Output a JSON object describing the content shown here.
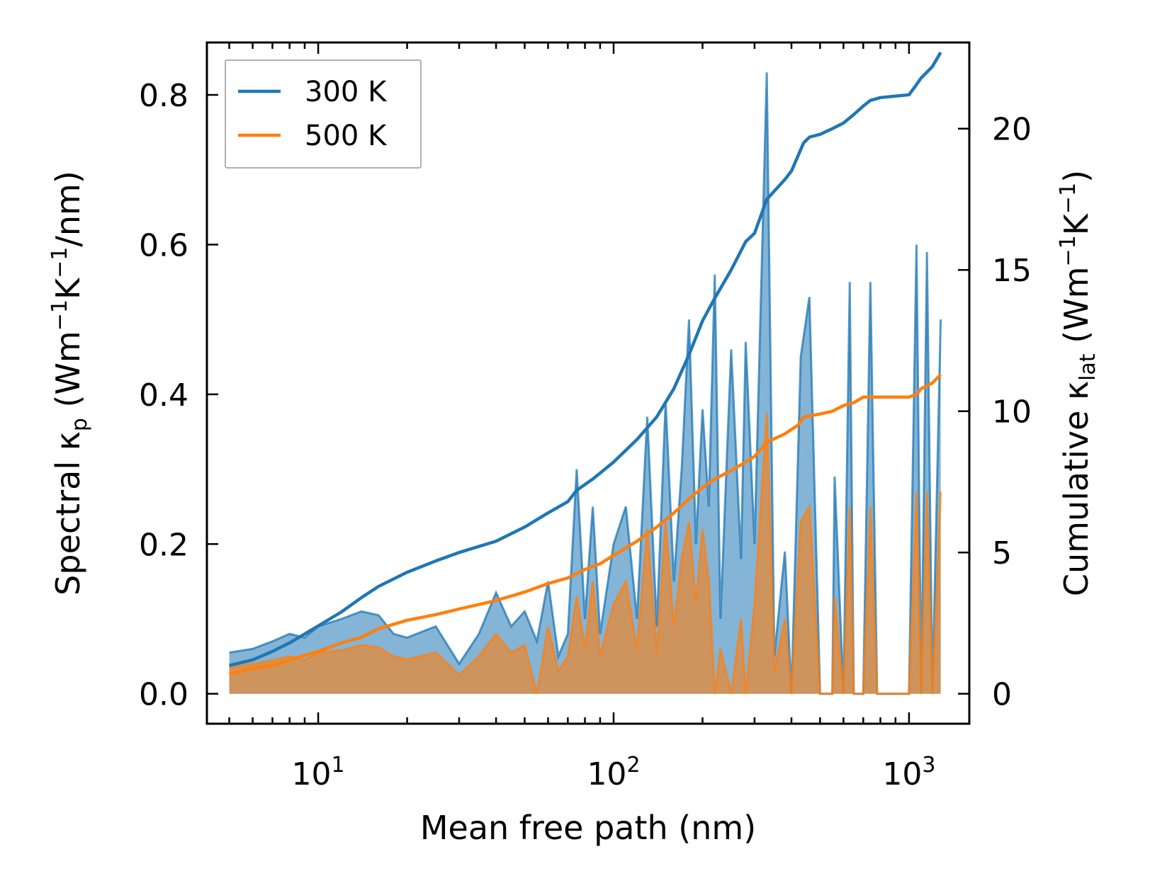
{
  "chart_data": {
    "type": "line",
    "xscale": "log",
    "xlabel": "Mean free path (nm)",
    "ylabel": "Spectral κ_p (Wm⁻¹K⁻¹/nm)",
    "y2label": "Cumulative κ_lat (Wm⁻¹K⁻¹)",
    "xlim": [
      4.2,
      1600
    ],
    "ylim": [
      -0.04,
      0.87
    ],
    "y2lim": [
      -1.06,
      23.05
    ],
    "x_ticks": [
      {
        "value": 10,
        "base": "10",
        "exp": "1"
      },
      {
        "value": 100,
        "base": "10",
        "exp": "2"
      },
      {
        "value": 1000,
        "base": "10",
        "exp": "3"
      }
    ],
    "y_ticks": [
      {
        "value": 0.0,
        "label": "0.0"
      },
      {
        "value": 0.2,
        "label": "0.2"
      },
      {
        "value": 0.4,
        "label": "0.4"
      },
      {
        "value": 0.6,
        "label": "0.6"
      },
      {
        "value": 0.8,
        "label": "0.8"
      }
    ],
    "y2_ticks": [
      {
        "value": 0,
        "label": "0"
      },
      {
        "value": 5,
        "label": "5"
      },
      {
        "value": 10,
        "label": "10"
      },
      {
        "value": 15,
        "label": "15"
      },
      {
        "value": 20,
        "label": "20"
      }
    ],
    "legend": {
      "position": "top-left",
      "entries": [
        "300 K",
        "500 K"
      ]
    },
    "colors": {
      "300 K": "#1f77b4",
      "500 K": "#ff7f0e"
    },
    "series": [
      {
        "name": "300 K",
        "color": "#1f77b4",
        "spectral": [
          [
            5,
            0.055
          ],
          [
            6,
            0.06
          ],
          [
            7,
            0.07
          ],
          [
            8,
            0.08
          ],
          [
            9,
            0.075
          ],
          [
            10,
            0.09
          ],
          [
            12,
            0.1
          ],
          [
            14,
            0.11
          ],
          [
            16,
            0.105
          ],
          [
            18,
            0.08
          ],
          [
            20,
            0.075
          ],
          [
            25,
            0.09
          ],
          [
            30,
            0.04
          ],
          [
            35,
            0.08
          ],
          [
            40,
            0.135
          ],
          [
            45,
            0.09
          ],
          [
            50,
            0.11
          ],
          [
            55,
            0.07
          ],
          [
            60,
            0.15
          ],
          [
            65,
            0.05
          ],
          [
            70,
            0.08
          ],
          [
            75,
            0.3
          ],
          [
            80,
            0.1
          ],
          [
            85,
            0.25
          ],
          [
            90,
            0.08
          ],
          [
            100,
            0.2
          ],
          [
            110,
            0.25
          ],
          [
            120,
            0.1
          ],
          [
            130,
            0.37
          ],
          [
            140,
            0.09
          ],
          [
            150,
            0.39
          ],
          [
            160,
            0.15
          ],
          [
            170,
            0.3
          ],
          [
            180,
            0.5
          ],
          [
            190,
            0.2
          ],
          [
            200,
            0.38
          ],
          [
            210,
            0.25
          ],
          [
            220,
            0.56
          ],
          [
            230,
            0.1
          ],
          [
            250,
            0.46
          ],
          [
            270,
            0.18
          ],
          [
            280,
            0.47
          ],
          [
            300,
            0.2
          ],
          [
            330,
            0.83
          ],
          [
            350,
            0.05
          ],
          [
            380,
            0.19
          ],
          [
            400,
            0.0
          ],
          [
            430,
            0.45
          ],
          [
            460,
            0.53
          ],
          [
            500,
            0.0
          ],
          [
            550,
            0.0
          ],
          [
            560,
            0.29
          ],
          [
            600,
            0.0
          ],
          [
            630,
            0.55
          ],
          [
            650,
            0.0
          ],
          [
            700,
            0.0
          ],
          [
            740,
            0.55
          ],
          [
            780,
            0.0
          ],
          [
            1000,
            0.0
          ],
          [
            1060,
            0.6
          ],
          [
            1100,
            0.0
          ],
          [
            1150,
            0.59
          ],
          [
            1200,
            0.0
          ],
          [
            1280,
            0.5
          ]
        ],
        "cumulative": [
          [
            5,
            1.0
          ],
          [
            6,
            1.2
          ],
          [
            7,
            1.5
          ],
          [
            8,
            1.8
          ],
          [
            10,
            2.4
          ],
          [
            12,
            2.9
          ],
          [
            14,
            3.4
          ],
          [
            16,
            3.8
          ],
          [
            20,
            4.3
          ],
          [
            25,
            4.7
          ],
          [
            30,
            5.0
          ],
          [
            40,
            5.4
          ],
          [
            50,
            5.9
          ],
          [
            60,
            6.4
          ],
          [
            70,
            6.8
          ],
          [
            75,
            7.2
          ],
          [
            85,
            7.6
          ],
          [
            100,
            8.2
          ],
          [
            120,
            9.0
          ],
          [
            140,
            9.8
          ],
          [
            160,
            10.8
          ],
          [
            180,
            12.0
          ],
          [
            200,
            13.2
          ],
          [
            220,
            14.0
          ],
          [
            250,
            15.0
          ],
          [
            280,
            16.0
          ],
          [
            300,
            16.3
          ],
          [
            330,
            17.5
          ],
          [
            380,
            18.2
          ],
          [
            400,
            18.5
          ],
          [
            440,
            19.5
          ],
          [
            460,
            19.7
          ],
          [
            500,
            19.8
          ],
          [
            550,
            20.0
          ],
          [
            600,
            20.2
          ],
          [
            650,
            20.5
          ],
          [
            700,
            20.8
          ],
          [
            740,
            21.0
          ],
          [
            800,
            21.1
          ],
          [
            1000,
            21.2
          ],
          [
            1050,
            21.5
          ],
          [
            1100,
            21.8
          ],
          [
            1150,
            22.0
          ],
          [
            1200,
            22.2
          ],
          [
            1280,
            22.7
          ]
        ]
      },
      {
        "name": "500 K",
        "color": "#ff7f0e",
        "spectral": [
          [
            5,
            0.035
          ],
          [
            6,
            0.04
          ],
          [
            7,
            0.045
          ],
          [
            8,
            0.05
          ],
          [
            9,
            0.045
          ],
          [
            10,
            0.055
          ],
          [
            12,
            0.058
          ],
          [
            14,
            0.065
          ],
          [
            16,
            0.062
          ],
          [
            18,
            0.05
          ],
          [
            20,
            0.046
          ],
          [
            25,
            0.055
          ],
          [
            30,
            0.025
          ],
          [
            35,
            0.05
          ],
          [
            40,
            0.08
          ],
          [
            45,
            0.055
          ],
          [
            50,
            0.065
          ],
          [
            55,
            0.0
          ],
          [
            60,
            0.09
          ],
          [
            65,
            0.03
          ],
          [
            70,
            0.05
          ],
          [
            75,
            0.13
          ],
          [
            80,
            0.06
          ],
          [
            85,
            0.15
          ],
          [
            90,
            0.05
          ],
          [
            100,
            0.12
          ],
          [
            110,
            0.15
          ],
          [
            120,
            0.06
          ],
          [
            130,
            0.22
          ],
          [
            140,
            0.055
          ],
          [
            150,
            0.23
          ],
          [
            160,
            0.09
          ],
          [
            170,
            0.18
          ],
          [
            180,
            0.23
          ],
          [
            190,
            0.12
          ],
          [
            200,
            0.22
          ],
          [
            210,
            0.15
          ],
          [
            220,
            0.0
          ],
          [
            230,
            0.06
          ],
          [
            250,
            0.0
          ],
          [
            270,
            0.1
          ],
          [
            280,
            0.0
          ],
          [
            300,
            0.12
          ],
          [
            330,
            0.375
          ],
          [
            350,
            0.03
          ],
          [
            380,
            0.1
          ],
          [
            400,
            0.0
          ],
          [
            430,
            0.23
          ],
          [
            460,
            0.25
          ],
          [
            500,
            0.0
          ],
          [
            550,
            0.0
          ],
          [
            560,
            0.13
          ],
          [
            600,
            0.0
          ],
          [
            630,
            0.25
          ],
          [
            650,
            0.0
          ],
          [
            700,
            0.0
          ],
          [
            740,
            0.25
          ],
          [
            780,
            0.0
          ],
          [
            1000,
            0.0
          ],
          [
            1060,
            0.27
          ],
          [
            1100,
            0.0
          ],
          [
            1150,
            0.27
          ],
          [
            1200,
            0.0
          ],
          [
            1280,
            0.27
          ]
        ],
        "cumulative": [
          [
            5,
            0.7
          ],
          [
            6,
            0.9
          ],
          [
            7,
            1.0
          ],
          [
            8,
            1.2
          ],
          [
            10,
            1.5
          ],
          [
            12,
            1.8
          ],
          [
            14,
            2.0
          ],
          [
            16,
            2.3
          ],
          [
            20,
            2.6
          ],
          [
            25,
            2.8
          ],
          [
            30,
            3.0
          ],
          [
            40,
            3.3
          ],
          [
            50,
            3.6
          ],
          [
            60,
            3.9
          ],
          [
            70,
            4.1
          ],
          [
            80,
            4.4
          ],
          [
            90,
            4.6
          ],
          [
            100,
            4.9
          ],
          [
            120,
            5.4
          ],
          [
            140,
            5.9
          ],
          [
            160,
            6.4
          ],
          [
            180,
            6.9
          ],
          [
            200,
            7.3
          ],
          [
            220,
            7.6
          ],
          [
            250,
            7.9
          ],
          [
            280,
            8.2
          ],
          [
            300,
            8.4
          ],
          [
            330,
            8.9
          ],
          [
            380,
            9.2
          ],
          [
            420,
            9.5
          ],
          [
            440,
            9.8
          ],
          [
            500,
            9.9
          ],
          [
            550,
            10.0
          ],
          [
            600,
            10.2
          ],
          [
            650,
            10.3
          ],
          [
            700,
            10.5
          ],
          [
            800,
            10.5
          ],
          [
            1000,
            10.5
          ],
          [
            1060,
            10.6
          ],
          [
            1100,
            10.8
          ],
          [
            1200,
            11.0
          ],
          [
            1280,
            11.3
          ]
        ]
      }
    ]
  }
}
